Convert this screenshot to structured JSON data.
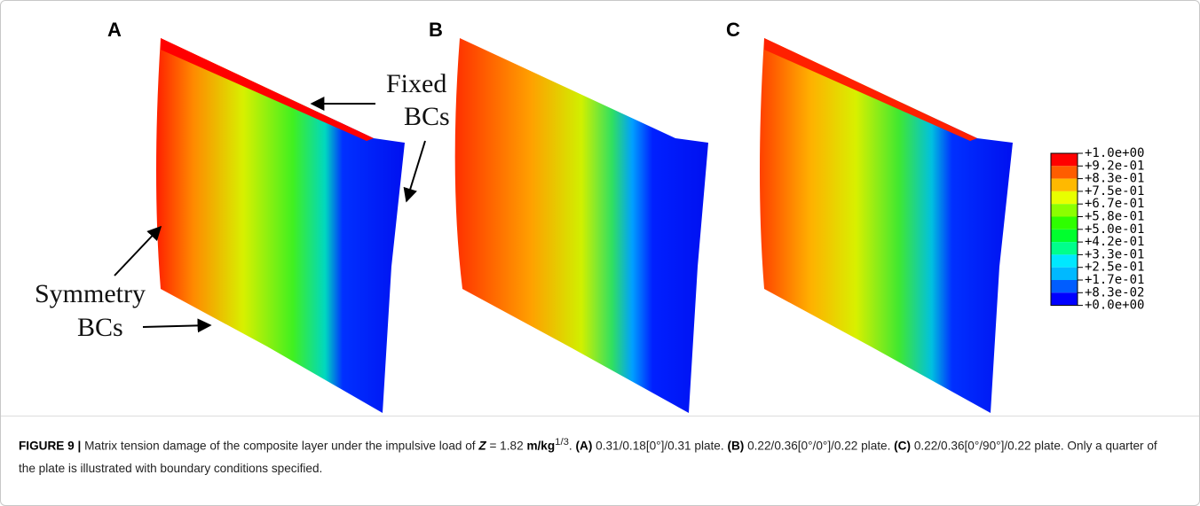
{
  "panels": [
    {
      "label": "A"
    },
    {
      "label": "B"
    },
    {
      "label": "C"
    }
  ],
  "annotations": {
    "fixed_1": "Fixed",
    "fixed_2": "BCs",
    "symmetry_1": "Symmetry",
    "symmetry_2": "BCs"
  },
  "legend": {
    "labels": [
      "+1.0e+00",
      "+9.2e-01",
      "+8.3e-01",
      "+7.5e-01",
      "+6.7e-01",
      "+5.8e-01",
      "+5.0e-01",
      "+4.2e-01",
      "+3.3e-01",
      "+2.5e-01",
      "+1.7e-01",
      "+8.3e-02",
      "+0.0e+00"
    ],
    "colors": [
      "#ff0000",
      "#ff5d00",
      "#ffb900",
      "#e8ff00",
      "#8bff00",
      "#2eff00",
      "#00ff2e",
      "#00ff8b",
      "#00e8ff",
      "#00b9ff",
      "#005dff",
      "#0000ff"
    ]
  },
  "caption": {
    "label": "FIGURE 9 |",
    "text1": "Matrix tension damage of the composite layer under the impulsive load of",
    "var": "Z",
    "text2": "= 1.82",
    "unit": "m/kg",
    "exp": "1/3",
    "text3": ".",
    "a": "(A)",
    "a_text": "0.31/0.18[0°]/0.31 plate.",
    "b": "(B)",
    "b_text": "0.22/0.36[0°/0°]/0.22 plate.",
    "c": "(C)",
    "c_text": "0.22/0.36[0°/90°]/0.22 plate. Only a quarter of the plate is illustrated with boundary conditions specified."
  }
}
